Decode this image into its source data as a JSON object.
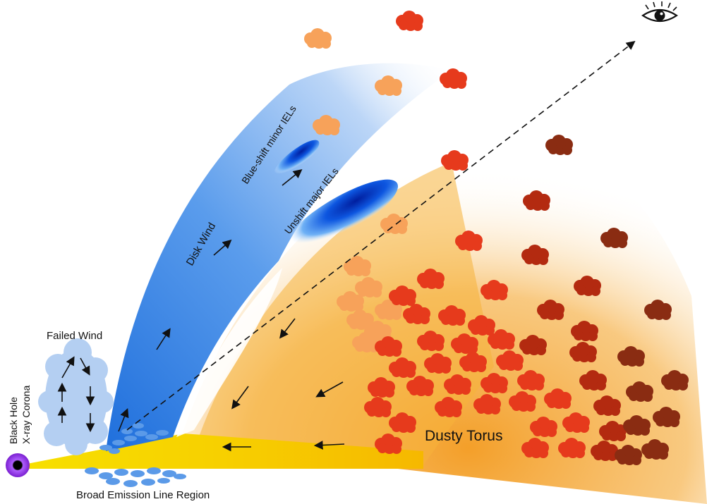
{
  "labels": {
    "black_hole": "Black Hole",
    "xray_corona": "X-ray Corona",
    "failed_wind": "Failed Wind",
    "disk_wind": "Disk Wind",
    "blue_shift": "Blue-shift minor IELs",
    "unshift": "Unshift major IELs",
    "dusty_torus": "Dusty Torus",
    "blr": "Broad Emission Line Region"
  },
  "colors": {
    "accretion_disk": "#f7d400",
    "wind_blue": "#2f7fe0",
    "emission_blue": "#0a3fd6",
    "torus_orange": "#f5a623",
    "cloud_red": "#e8361a",
    "cloud_dark": "#8a2a10",
    "black_hole_ring": "#8a2be2",
    "blr_clouds": "#5b9ae8"
  },
  "icons": {
    "observer": "eye-icon",
    "black_hole": "black-hole-icon"
  }
}
